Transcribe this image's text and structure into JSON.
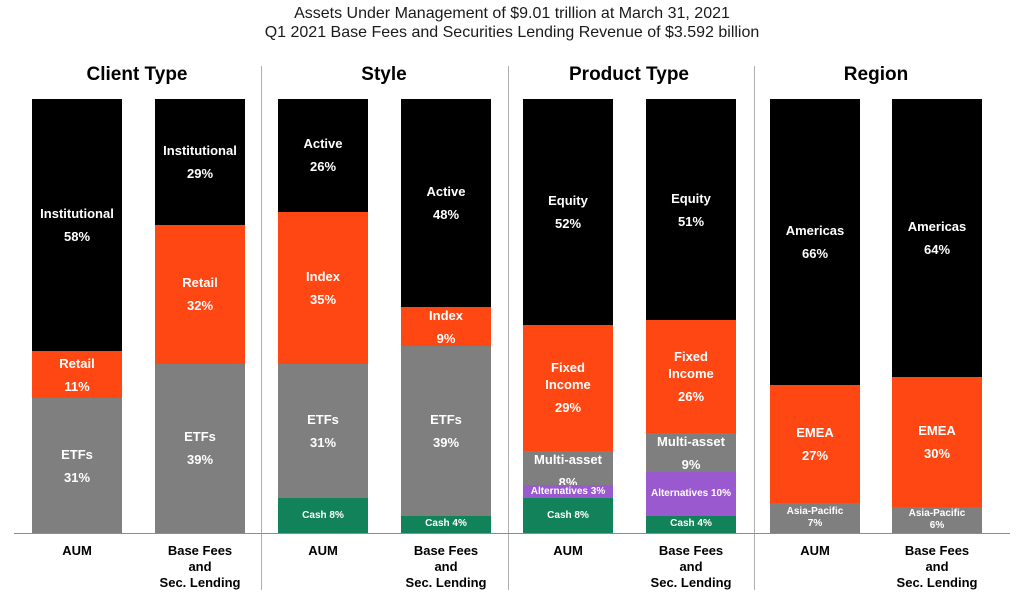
{
  "header": {
    "title_line1": "Assets Under Management of $9.01 trillion at March 31, 2021",
    "title_line2": "Q1 2021 Base Fees and Securities Lending Revenue of $3.592 billion"
  },
  "colors": {
    "black": "#000000",
    "orange": "#ff4713",
    "gray": "#7f7f7f",
    "green": "#12825a",
    "purple": "#9b59d0"
  },
  "chart_data": {
    "type": "bar",
    "stacked": true,
    "panels": [
      {
        "title": "Client Type",
        "bars": [
          {
            "label": "AUM",
            "segments": [
              {
                "name": "Institutional",
                "value": 58,
                "display": "58%",
                "color": "black"
              },
              {
                "name": "Retail",
                "value": 11,
                "display": "11%",
                "color": "orange"
              },
              {
                "name": "ETFs",
                "value": 31,
                "display": "31%",
                "color": "gray"
              }
            ]
          },
          {
            "label": "Base Fees\nand\nSec. Lending",
            "segments": [
              {
                "name": "Institutional",
                "value": 29,
                "display": "29%",
                "color": "black"
              },
              {
                "name": "Retail",
                "value": 32,
                "display": "32%",
                "color": "orange"
              },
              {
                "name": "ETFs",
                "value": 39,
                "display": "39%",
                "color": "gray"
              }
            ]
          }
        ]
      },
      {
        "title": "Style",
        "bars": [
          {
            "label": "AUM",
            "segments": [
              {
                "name": "Active",
                "value": 26,
                "display": "26%",
                "color": "black"
              },
              {
                "name": "Index",
                "value": 35,
                "display": "35%",
                "color": "orange"
              },
              {
                "name": "ETFs",
                "value": 31,
                "display": "31%",
                "color": "gray"
              },
              {
                "name": "Cash",
                "value": 8,
                "display": "8%",
                "color": "green",
                "inline": true
              }
            ]
          },
          {
            "label": "Base Fees\nand\nSec. Lending",
            "segments": [
              {
                "name": "Active",
                "value": 48,
                "display": "48%",
                "color": "black"
              },
              {
                "name": "Index",
                "value": 9,
                "display": "9%",
                "color": "orange"
              },
              {
                "name": "ETFs",
                "value": 39,
                "display": "39%",
                "color": "gray"
              },
              {
                "name": "Cash",
                "value": 4,
                "display": "4%",
                "color": "green",
                "inline": true
              }
            ]
          }
        ]
      },
      {
        "title": "Product Type",
        "bars": [
          {
            "label": "AUM",
            "segments": [
              {
                "name": "Equity",
                "value": 52,
                "display": "52%",
                "color": "black"
              },
              {
                "name": "Fixed\nIncome",
                "value": 29,
                "display": "29%",
                "color": "orange"
              },
              {
                "name": "Multi-asset",
                "value": 8,
                "display": "8%",
                "color": "gray"
              },
              {
                "name": "Alternatives",
                "value": 3,
                "display": "3%",
                "color": "purple",
                "inline": true
              },
              {
                "name": "Cash",
                "value": 8,
                "display": "8%",
                "color": "green",
                "inline": true
              }
            ]
          },
          {
            "label": "Base Fees\nand\nSec. Lending",
            "segments": [
              {
                "name": "Equity",
                "value": 51,
                "display": "51%",
                "color": "black"
              },
              {
                "name": "Fixed\nIncome",
                "value": 26,
                "display": "26%",
                "color": "orange"
              },
              {
                "name": "Multi-asset",
                "value": 9,
                "display": "9%",
                "color": "gray"
              },
              {
                "name": "Alternatives",
                "value": 10,
                "display": "10%",
                "color": "purple",
                "inline": true
              },
              {
                "name": "Cash",
                "value": 4,
                "display": "4%",
                "color": "green",
                "inline": true
              }
            ]
          }
        ]
      },
      {
        "title": "Region",
        "bars": [
          {
            "label": "AUM",
            "segments": [
              {
                "name": "Americas",
                "value": 66,
                "display": "66%",
                "color": "black"
              },
              {
                "name": "EMEA",
                "value": 27,
                "display": "27%",
                "color": "orange"
              },
              {
                "name": "Asia-Pacific",
                "value": 7,
                "display": "7%",
                "color": "gray",
                "small": true
              }
            ]
          },
          {
            "label": "Base Fees\nand\nSec. Lending",
            "segments": [
              {
                "name": "Americas",
                "value": 64,
                "display": "64%",
                "color": "black"
              },
              {
                "name": "EMEA",
                "value": 30,
                "display": "30%",
                "color": "orange"
              },
              {
                "name": "Asia-Pacific",
                "value": 6,
                "display": "6%",
                "color": "gray",
                "small": true
              }
            ]
          }
        ]
      }
    ]
  }
}
